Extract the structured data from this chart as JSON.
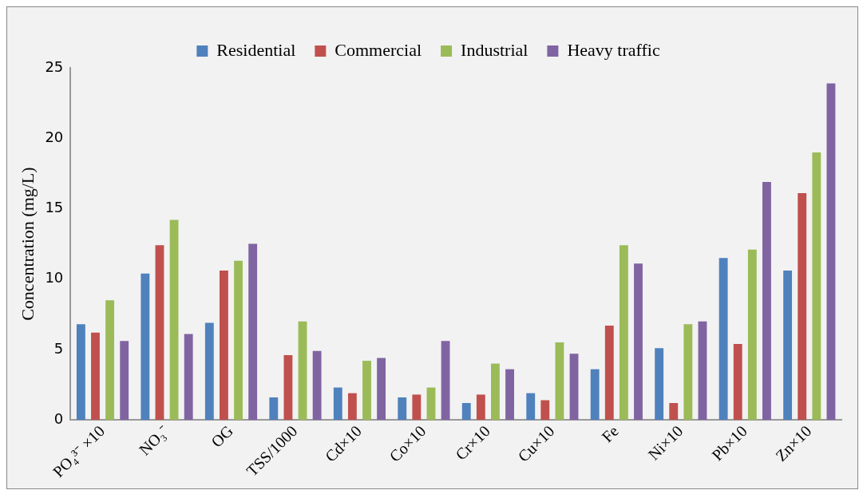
{
  "chart_data": {
    "type": "bar",
    "ylabel": "Concentration (mg/L)",
    "categories": [
      "PO₄³⁻ ×10",
      "NO₃⁻",
      "OG",
      "TSS/1000",
      "Cd×10",
      "Co×10",
      "Cr×10",
      "Cu×10",
      "Fe",
      "Ni×10",
      "Pb×10",
      "Zn×10"
    ],
    "series": [
      {
        "name": "Residential",
        "color": "#4f81bd",
        "values": [
          6.8,
          10.4,
          6.9,
          1.6,
          2.3,
          1.6,
          1.2,
          1.9,
          3.6,
          5.1,
          11.5,
          10.6
        ]
      },
      {
        "name": "Commercial",
        "color": "#c0504d",
        "values": [
          6.2,
          12.4,
          10.6,
          4.6,
          1.9,
          1.8,
          1.8,
          1.4,
          6.7,
          1.2,
          5.4,
          16.1
        ]
      },
      {
        "name": "Industrial",
        "color": "#9bbb59",
        "values": [
          8.5,
          14.2,
          11.3,
          7.0,
          4.2,
          2.3,
          4.0,
          5.5,
          12.4,
          6.8,
          12.1,
          19.0
        ]
      },
      {
        "name": "Heavy traffic",
        "color": "#8064a2",
        "values": [
          5.6,
          6.1,
          12.5,
          4.9,
          4.4,
          5.6,
          3.6,
          4.7,
          11.1,
          7.0,
          16.9,
          23.9
        ]
      }
    ],
    "ylim": [
      0,
      25
    ],
    "yticks": [
      0,
      5,
      10,
      15,
      20,
      25
    ],
    "grid": false,
    "legend": "top"
  }
}
